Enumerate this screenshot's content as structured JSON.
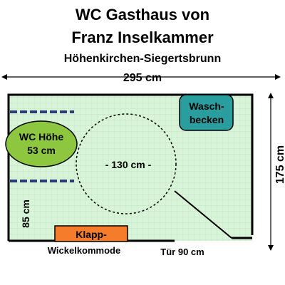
{
  "header": {
    "line1": "WC Gasthaus von",
    "line2": "Franz Inselkammer",
    "line3": "Höhenkirchen-Siegertsbrunn"
  },
  "dimensions": {
    "width": "295 cm",
    "height": "175 cm",
    "left_dim": "85 cm",
    "circle": "- 130 cm -",
    "door": "Tür 90 cm"
  },
  "fixtures": {
    "wc_line1": "WC Höhe",
    "wc_line2": "53 cm",
    "sink_line1": "Wasch-",
    "sink_line2": "becken",
    "changer_line1": "Klapp-",
    "changer_line2": "Wickelkommode"
  },
  "colors": {
    "floor": "#d9f5d9",
    "wc": "#8dc63f",
    "sink": "#2a9d9f",
    "changer": "#f47c2a",
    "grab_bar": "#2c3e7a"
  }
}
